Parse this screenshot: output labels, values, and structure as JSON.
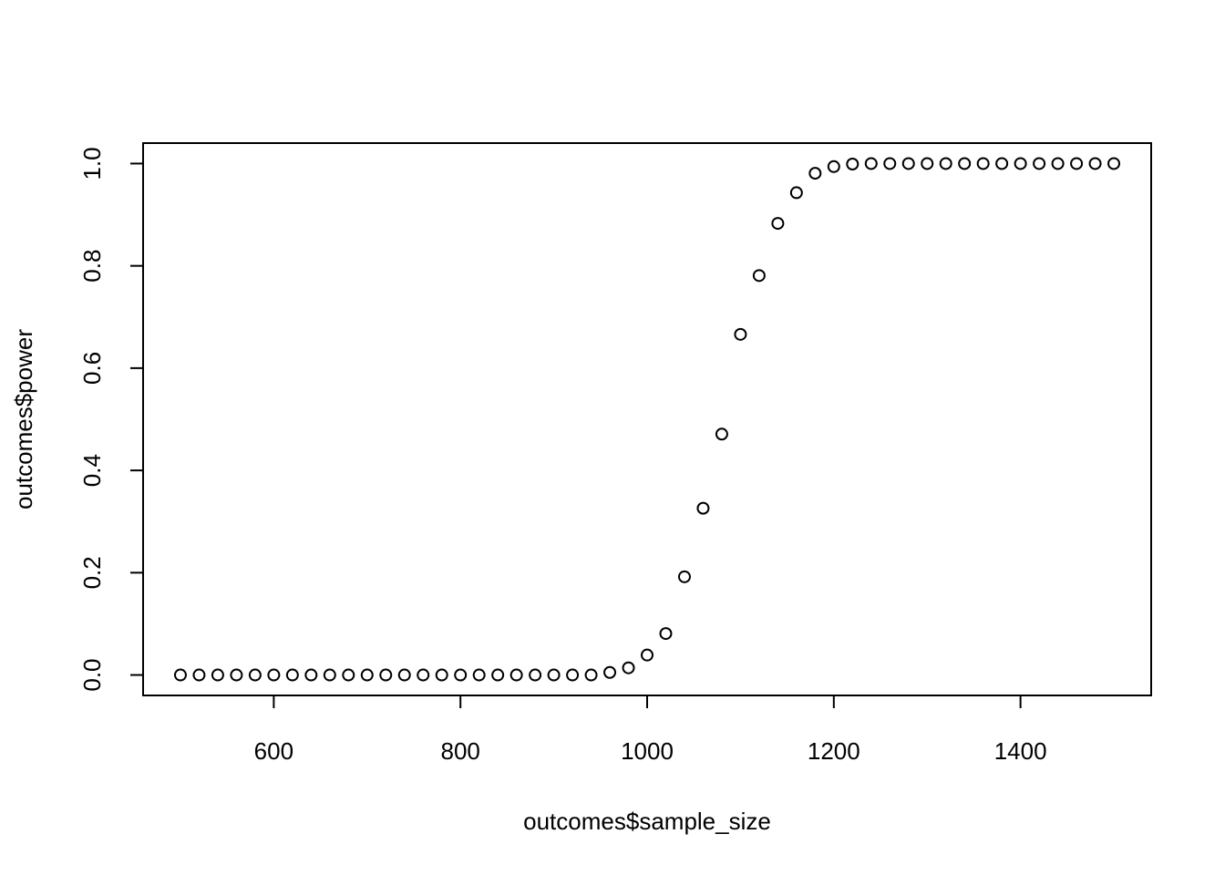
{
  "chart_data": {
    "type": "scatter",
    "title": "",
    "xlabel": "outcomes$sample_size",
    "ylabel": "outcomes$power",
    "xlim": [
      460,
      1540
    ],
    "ylim": [
      -0.04,
      1.04
    ],
    "x_ticks": [
      600,
      800,
      1000,
      1200,
      1400
    ],
    "y_ticks": [
      0.0,
      0.2,
      0.4,
      0.6,
      0.8,
      1.0
    ],
    "x_tick_labels": [
      "600",
      "800",
      "1000",
      "1200",
      "1400"
    ],
    "y_tick_labels": [
      "0.0",
      "0.2",
      "0.4",
      "0.6",
      "0.8",
      "1.0"
    ],
    "grid": false,
    "legend": "none",
    "marker": "open-circle",
    "series": [
      {
        "x": [
          500,
          520,
          540,
          560,
          580,
          600,
          620,
          640,
          660,
          680,
          700,
          720,
          740,
          760,
          780,
          800,
          820,
          840,
          860,
          880,
          900,
          920,
          940,
          960,
          980,
          1000,
          1020,
          1040,
          1060,
          1080,
          1100,
          1120,
          1140,
          1160,
          1180,
          1200,
          1220,
          1240,
          1260,
          1280,
          1300,
          1320,
          1340,
          1360,
          1380,
          1400,
          1420,
          1440,
          1460,
          1480,
          1500
        ],
        "y": [
          0,
          0,
          0,
          0,
          0,
          0,
          0,
          0,
          0,
          0,
          0,
          0,
          0,
          0,
          0,
          0,
          0,
          0,
          0,
          0,
          0,
          0,
          0,
          0.005,
          0.014,
          0.039,
          0.081,
          0.192,
          0.326,
          0.471,
          0.666,
          0.781,
          0.883,
          0.943,
          0.981,
          0.994,
          0.999,
          1,
          1,
          1,
          1,
          1,
          1,
          1,
          1,
          1,
          1,
          1,
          1,
          1,
          1
        ]
      }
    ]
  }
}
